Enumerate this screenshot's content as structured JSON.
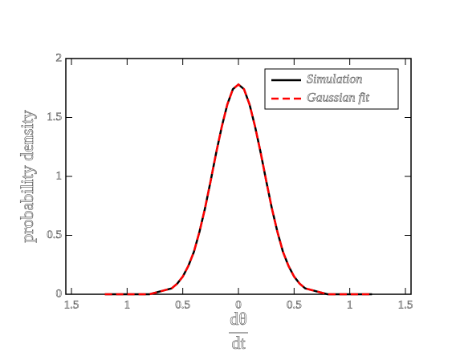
{
  "chart_data": {
    "type": "line",
    "ylabel": "probability density",
    "xlabel_top": "dθ",
    "xlabel_bottom": "dt",
    "x": [
      -1.2,
      -1.0,
      -0.8,
      -0.6,
      -0.55,
      -0.5,
      -0.45,
      -0.4,
      -0.35,
      -0.3,
      -0.25,
      -0.2,
      -0.15,
      -0.1,
      -0.05,
      0,
      0.05,
      0.1,
      0.15,
      0.2,
      0.25,
      0.3,
      0.35,
      0.4,
      0.45,
      0.5,
      0.55,
      0.6,
      0.8,
      1.0,
      1.2
    ],
    "series": [
      {
        "name": "Simulation",
        "color": "#000000",
        "dash": false,
        "values": [
          0,
          0,
          0,
          0.05,
          0.09,
          0.15,
          0.24,
          0.36,
          0.53,
          0.73,
          0.96,
          1.2,
          1.42,
          1.61,
          1.74,
          1.78,
          1.74,
          1.61,
          1.42,
          1.2,
          0.96,
          0.73,
          0.53,
          0.36,
          0.24,
          0.15,
          0.09,
          0.05,
          0,
          0,
          0
        ]
      },
      {
        "name": "Gaussian fit",
        "color": "#ff0000",
        "dash": true,
        "values": [
          0,
          0,
          0,
          0.05,
          0.09,
          0.15,
          0.24,
          0.36,
          0.53,
          0.73,
          0.96,
          1.2,
          1.42,
          1.61,
          1.74,
          1.78,
          1.74,
          1.61,
          1.42,
          1.2,
          0.96,
          0.73,
          0.53,
          0.36,
          0.24,
          0.15,
          0.09,
          0.05,
          0,
          0,
          0
        ]
      }
    ],
    "xlim": [
      -1.5,
      1.5
    ],
    "xticks": [
      {
        "value": -1.5,
        "label": "1.5"
      },
      {
        "value": -1,
        "label": "1"
      },
      {
        "value": -0.5,
        "label": "0.5"
      },
      0,
      0.5,
      1,
      1.5
    ],
    "ylim": [
      0,
      2
    ],
    "yticks": [
      0,
      0.5,
      1,
      1.5,
      2
    ],
    "legend": "top-right"
  }
}
